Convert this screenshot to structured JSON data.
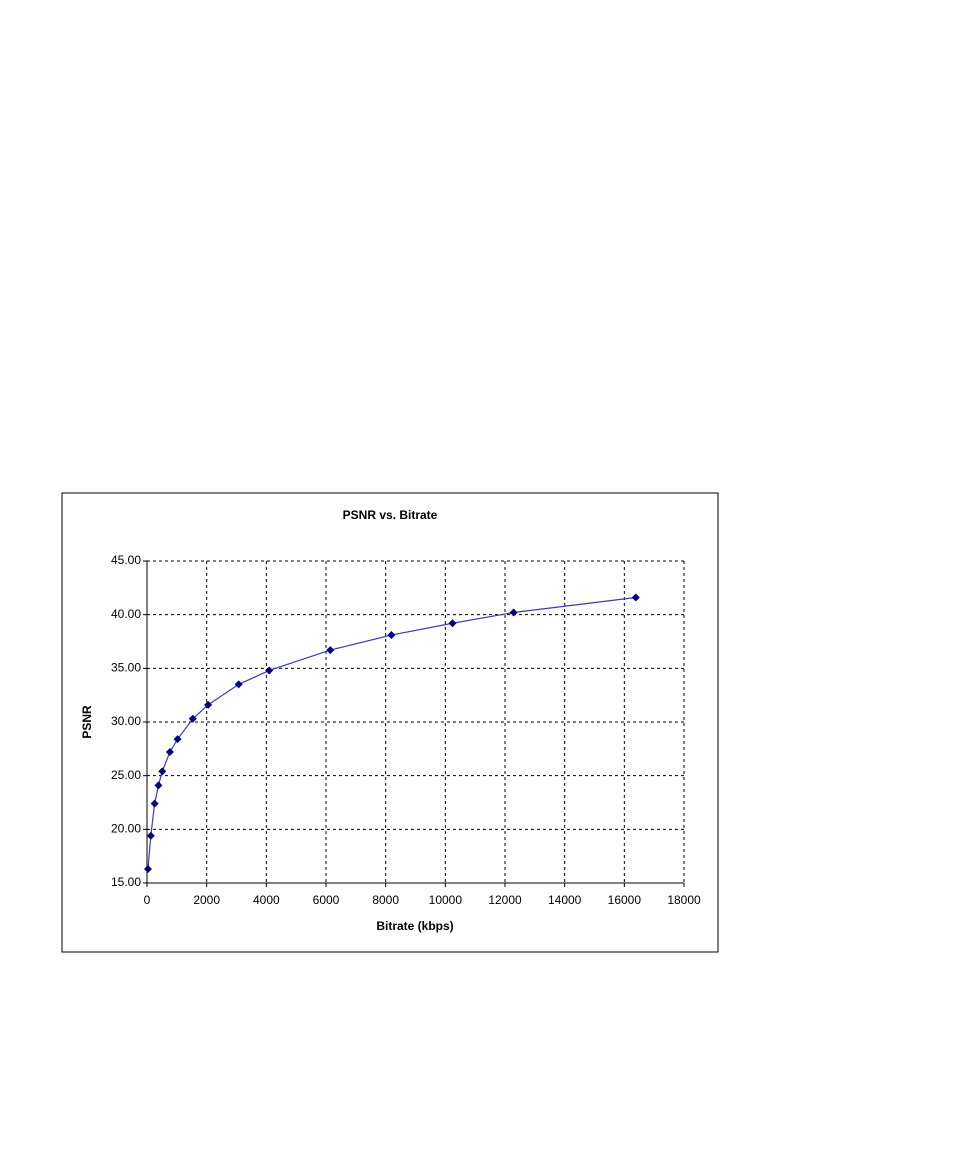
{
  "chart_data": {
    "type": "scatter",
    "title": "PSNR vs. Bitrate",
    "xlabel": "Bitrate (kbps)",
    "ylabel": "PSNR",
    "x": [
      32,
      128,
      256,
      384,
      512,
      768,
      1024,
      1536,
      2048,
      3072,
      4096,
      6144,
      8192,
      10240,
      12288,
      16384
    ],
    "series": [
      {
        "name": "PSNR",
        "color": "#000080",
        "values": [
          16.3,
          19.4,
          22.4,
          24.1,
          25.4,
          27.2,
          28.4,
          30.3,
          31.6,
          33.5,
          34.8,
          36.7,
          38.1,
          39.2,
          40.2,
          41.6
        ]
      }
    ],
    "xlim": [
      0,
      18000
    ],
    "xticks": [
      0,
      2000,
      4000,
      6000,
      8000,
      10000,
      12000,
      14000,
      16000,
      18000
    ],
    "ylim": [
      15,
      45
    ],
    "yticks": [
      {
        "value": 15,
        "label": "15.00"
      },
      {
        "value": 20,
        "label": "20.00"
      },
      {
        "value": 25,
        "label": "25.00"
      },
      {
        "value": 30,
        "label": "30.00"
      },
      {
        "value": 35,
        "label": "35.00"
      },
      {
        "value": 40,
        "label": "40.00"
      },
      {
        "value": 45,
        "label": "45.00"
      }
    ],
    "grid": true
  }
}
